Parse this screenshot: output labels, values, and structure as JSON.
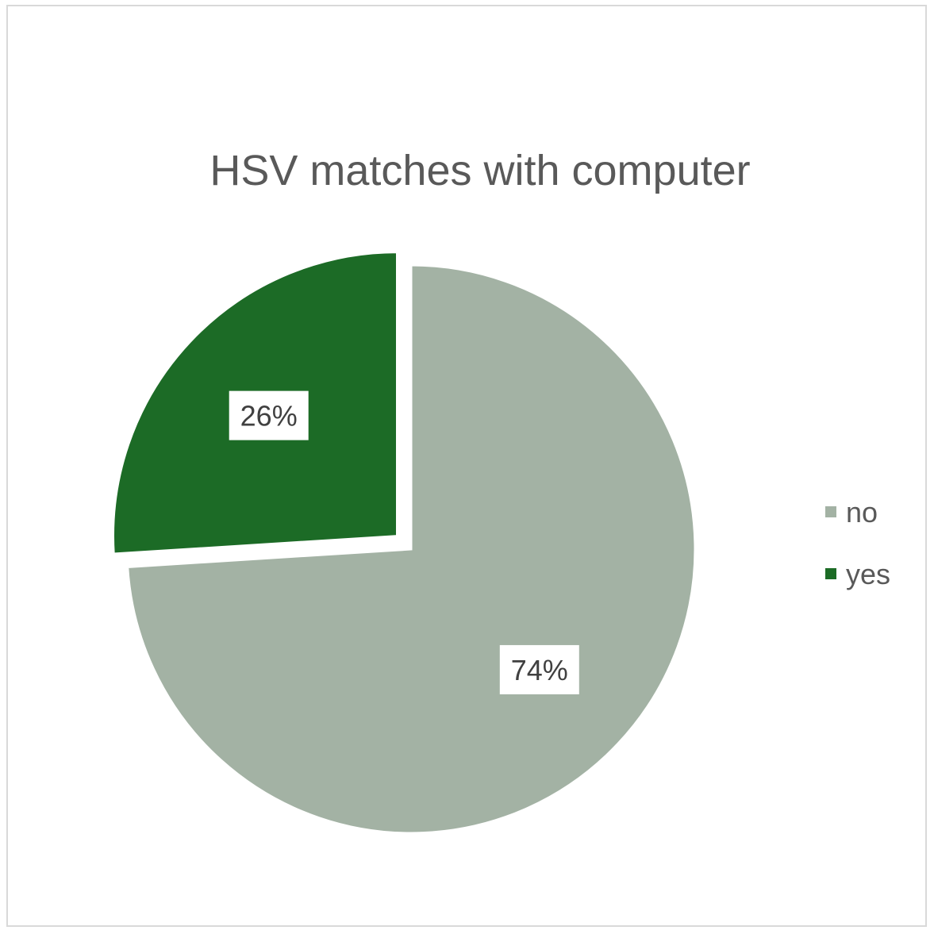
{
  "chart_data": {
    "type": "pie",
    "title": "HSV matches with computer",
    "categories": [
      "no",
      "yes"
    ],
    "values": [
      74,
      26
    ],
    "data_labels": [
      "74%",
      "26%"
    ],
    "colors": [
      "#a3b2a4",
      "#1c6b26"
    ],
    "exploded": [
      "yes"
    ],
    "legend_position": "right",
    "start_angle_from_top": "clockwise"
  }
}
